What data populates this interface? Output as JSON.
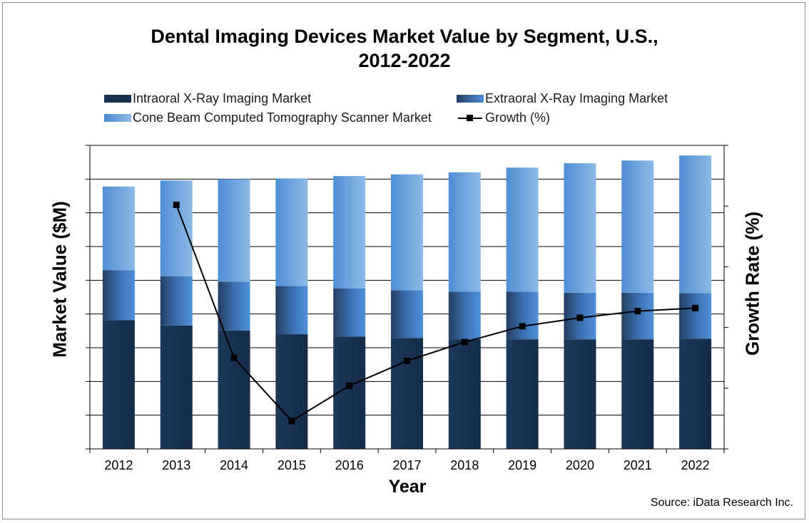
{
  "chart_data": {
    "type": "bar",
    "stacked": true,
    "title_lines": [
      "Dental Imaging Devices Market Value by Segment, U.S.,",
      "2012-2022"
    ],
    "xlabel": "Year",
    "ylabel": "Market Value ($M)",
    "y2label": "Growth Rate (%)",
    "categories": [
      "2012",
      "2013",
      "2014",
      "2015",
      "2016",
      "2017",
      "2018",
      "2019",
      "2020",
      "2021",
      "2022"
    ],
    "series": [
      {
        "name": "Intraoral X-Ray Imaging Market",
        "kind": "bar",
        "color": "#1b3554",
        "values": [
          3.82,
          3.66,
          3.51,
          3.4,
          3.33,
          3.29,
          3.25,
          3.25,
          3.25,
          3.25,
          3.27
        ]
      },
      {
        "name": "Extraoral X-Ray Imaging Market",
        "kind": "bar",
        "color": "#3f78bd",
        "values": [
          1.48,
          1.46,
          1.45,
          1.43,
          1.43,
          1.41,
          1.41,
          1.41,
          1.38,
          1.38,
          1.35
        ]
      },
      {
        "name": "Cone Beam Computed Tomography Scanner Market",
        "kind": "bar",
        "color": "#6fa5de",
        "values": [
          2.48,
          2.84,
          3.04,
          3.19,
          3.33,
          3.44,
          3.54,
          3.68,
          3.84,
          3.92,
          4.08
        ]
      },
      {
        "name": "Growth (%)",
        "kind": "line",
        "axis": "right",
        "color": "#000000",
        "values": [
          null,
          4.02,
          1.5,
          0.46,
          1.04,
          1.45,
          1.76,
          2.02,
          2.16,
          2.27,
          2.32
        ]
      }
    ],
    "ylim": [
      0,
      9
    ],
    "y2lim": [
      0,
      5
    ],
    "grid": true,
    "legend_position": "top"
  },
  "source": "Source: iData Research Inc."
}
